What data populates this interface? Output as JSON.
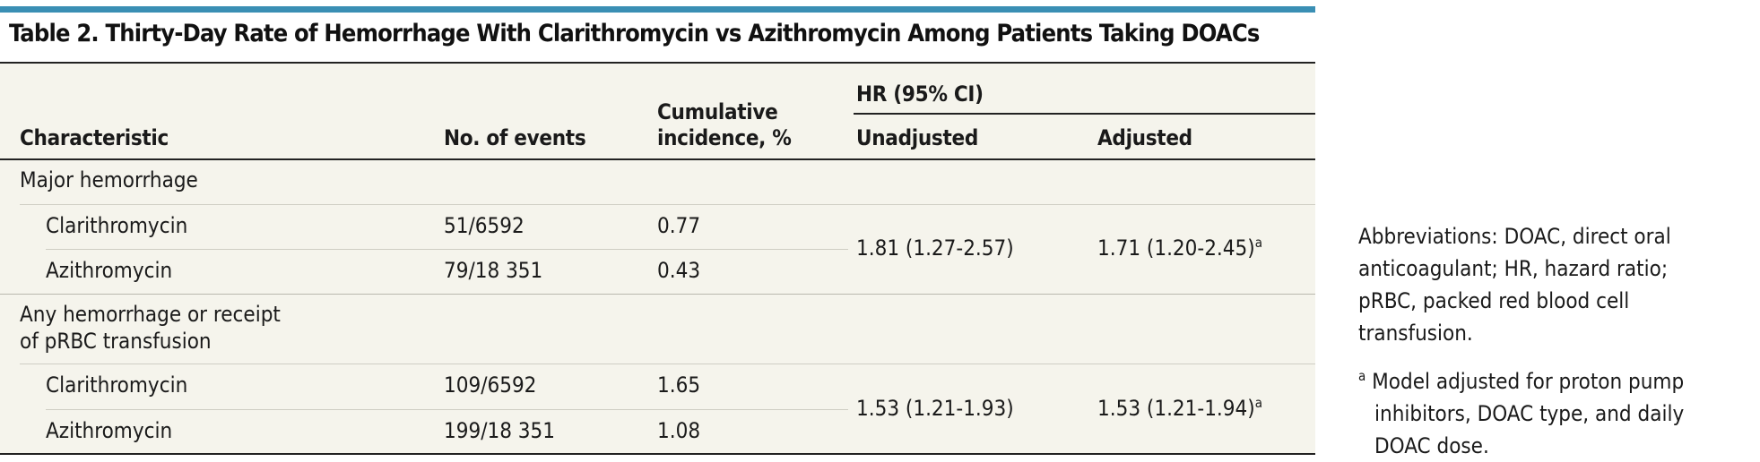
{
  "title": "Table 2. Thirty-Day Rate of Hemorrhage With Clarithromycin vs Azithromycin Among Patients Taking DOACs",
  "headers": {
    "characteristic": "Characteristic",
    "events": "No. of events",
    "cumulative_line1": "Cumulative",
    "cumulative_line2": "incidence, %",
    "hr_group": "HR (95% CI)",
    "unadjusted": "Unadjusted",
    "adjusted": "Adjusted"
  },
  "sections": [
    {
      "label_line1": "Major hemorrhage",
      "label_line2": "",
      "rows": [
        {
          "drug": "Clarithromycin",
          "events": "51/6592",
          "incidence": "0.77"
        },
        {
          "drug": "Azithromycin",
          "events": "79/18 351",
          "incidence": "0.43"
        }
      ],
      "hr_unadjusted": "1.81 (1.27-2.57)",
      "hr_adjusted": "1.71 (1.20-2.45)",
      "hr_adjusted_mark": "a"
    },
    {
      "label_line1": "Any hemorrhage or receipt",
      "label_line2": "of pRBC transfusion",
      "rows": [
        {
          "drug": "Clarithromycin",
          "events": "109/6592",
          "incidence": "1.65"
        },
        {
          "drug": "Azithromycin",
          "events": "199/18 351",
          "incidence": "1.08"
        }
      ],
      "hr_unadjusted": "1.53 (1.21-1.93)",
      "hr_adjusted": "1.53 (1.21-1.94)",
      "hr_adjusted_mark": "a"
    }
  ],
  "abbreviations": {
    "line1": "Abbreviations: DOAC, direct oral",
    "line2": "anticoagulant; HR, hazard ratio;",
    "line3": "pRBC, packed red blood cell",
    "line4": "transfusion."
  },
  "footnote": {
    "mark": "a",
    "line1": "Model adjusted for proton pump",
    "line2": "inhibitors, DOAC type, and daily",
    "line3": "DOAC dose."
  }
}
